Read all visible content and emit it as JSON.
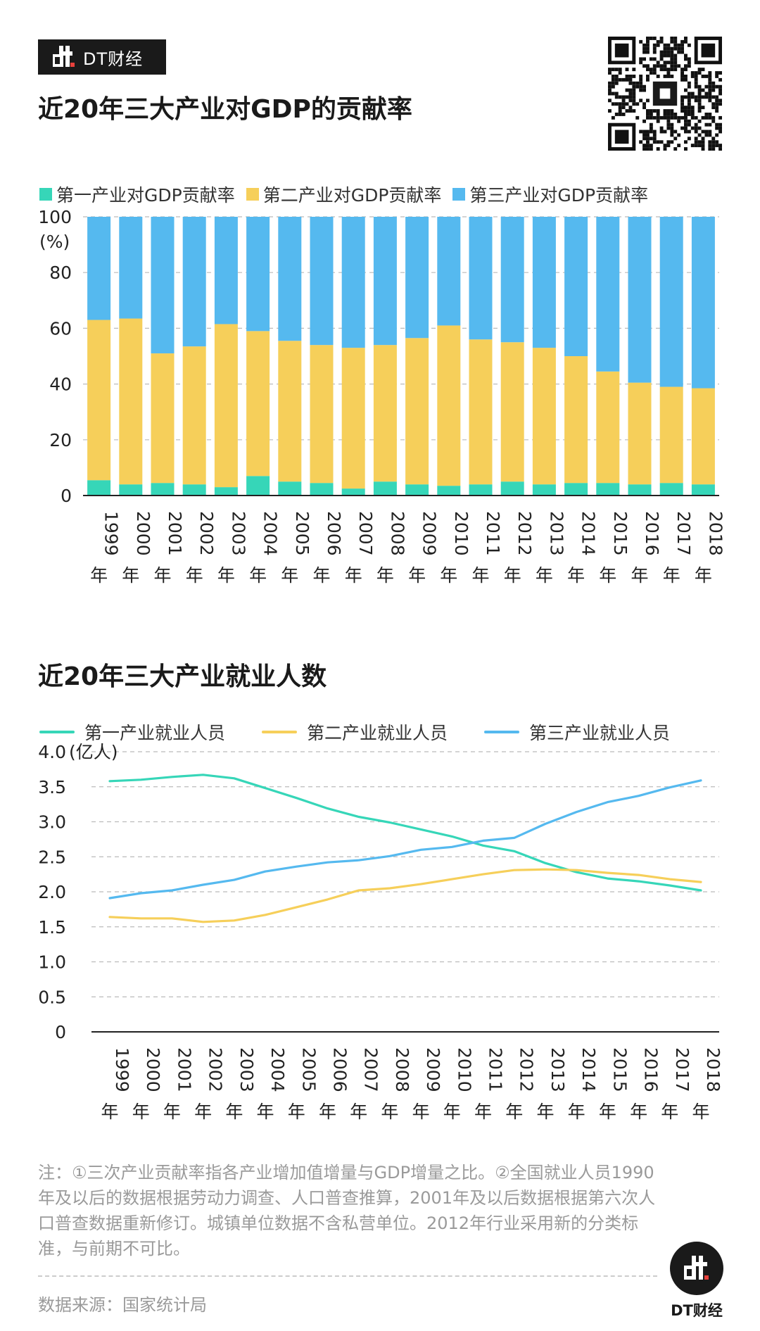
{
  "brand": {
    "name": "DT财经",
    "logo_text": "dt"
  },
  "colors": {
    "primary": "#36D6B8",
    "secondary": "#F6CF5A",
    "tertiary": "#55B9EF"
  },
  "qr_icon": "qr-code-icon",
  "chart1": {
    "title": "近20年三大产业对GDP的贡献率"
  },
  "chart2": {
    "title": "近20年三大产业就业人数"
  },
  "chart_data": [
    {
      "type": "bar",
      "stacked": true,
      "title": "近20年三大产业对GDP的贡献率",
      "categories": [
        "1999年",
        "2000年",
        "2001年",
        "2002年",
        "2003年",
        "2004年",
        "2005年",
        "2006年",
        "2007年",
        "2008年",
        "2009年",
        "2010年",
        "2011年",
        "2012年",
        "2013年",
        "2014年",
        "2015年",
        "2016年",
        "2017年",
        "2018年"
      ],
      "ylabel": "(%)",
      "ylim": [
        0,
        100
      ],
      "yticks": [
        0,
        20,
        40,
        60,
        80,
        100
      ],
      "series": [
        {
          "name": "第一产业对GDP贡献率",
          "values": [
            5.5,
            4.0,
            4.5,
            4.0,
            3.0,
            7.0,
            5.0,
            4.5,
            2.5,
            5.0,
            4.0,
            3.5,
            4.0,
            5.0,
            4.0,
            4.5,
            4.5,
            4.0,
            4.5,
            4.0
          ]
        },
        {
          "name": "第二产业对GDP贡献率",
          "values": [
            57.5,
            59.5,
            46.5,
            49.5,
            58.5,
            52.0,
            50.5,
            49.5,
            50.5,
            49.0,
            52.5,
            57.5,
            52.0,
            50.0,
            49.0,
            45.5,
            40.0,
            36.5,
            34.5,
            34.5
          ]
        },
        {
          "name": "第三产业对GDP贡献率",
          "values": [
            37.0,
            36.5,
            49.0,
            46.5,
            38.5,
            41.0,
            44.5,
            46.0,
            47.0,
            46.0,
            43.5,
            39.0,
            44.0,
            45.0,
            47.0,
            50.0,
            55.5,
            59.5,
            61.0,
            61.5
          ]
        }
      ]
    },
    {
      "type": "line",
      "title": "近20年三大产业就业人数",
      "categories": [
        "1999年",
        "2000年",
        "2001年",
        "2002年",
        "2003年",
        "2004年",
        "2005年",
        "2006年",
        "2007年",
        "2008年",
        "2009年",
        "2010年",
        "2011年",
        "2012年",
        "2013年",
        "2014年",
        "2015年",
        "2016年",
        "2017年",
        "2018年"
      ],
      "ylabel": "(亿人)",
      "ylim": [
        0,
        4.0
      ],
      "yticks": [
        "0",
        "0.5",
        "1.0",
        "1.5",
        "2.0",
        "2.5",
        "3.0",
        "3.5",
        "4.0"
      ],
      "series": [
        {
          "name": "第一产业就业人员",
          "values": [
            3.58,
            3.6,
            3.64,
            3.67,
            3.62,
            3.48,
            3.34,
            3.19,
            3.07,
            2.99,
            2.89,
            2.79,
            2.66,
            2.58,
            2.41,
            2.28,
            2.19,
            2.15,
            2.09,
            2.02
          ]
        },
        {
          "name": "第二产业就业人员",
          "values": [
            1.64,
            1.62,
            1.62,
            1.57,
            1.59,
            1.67,
            1.78,
            1.89,
            2.02,
            2.05,
            2.11,
            2.18,
            2.25,
            2.31,
            2.32,
            2.31,
            2.27,
            2.24,
            2.18,
            2.14
          ]
        },
        {
          "name": "第三产业就业人员",
          "values": [
            1.91,
            1.98,
            2.02,
            2.1,
            2.17,
            2.29,
            2.36,
            2.42,
            2.45,
            2.51,
            2.6,
            2.64,
            2.73,
            2.77,
            2.97,
            3.14,
            3.28,
            3.37,
            3.49,
            3.59
          ]
        }
      ]
    }
  ],
  "note": "注：①三次产业贡献率指各产业增加值增量与GDP增量之比。②全国就业人员1990年及以后的数据根据劳动力调查、人口普查推算，2001年及以后数据根据第六次人口普查数据重新修订。城镇单位数据不含私营单位。2012年行业采用新的分类标准，与前期不可比。",
  "source": "数据来源：国家统计局",
  "footer": {
    "brand": "DT财经"
  }
}
